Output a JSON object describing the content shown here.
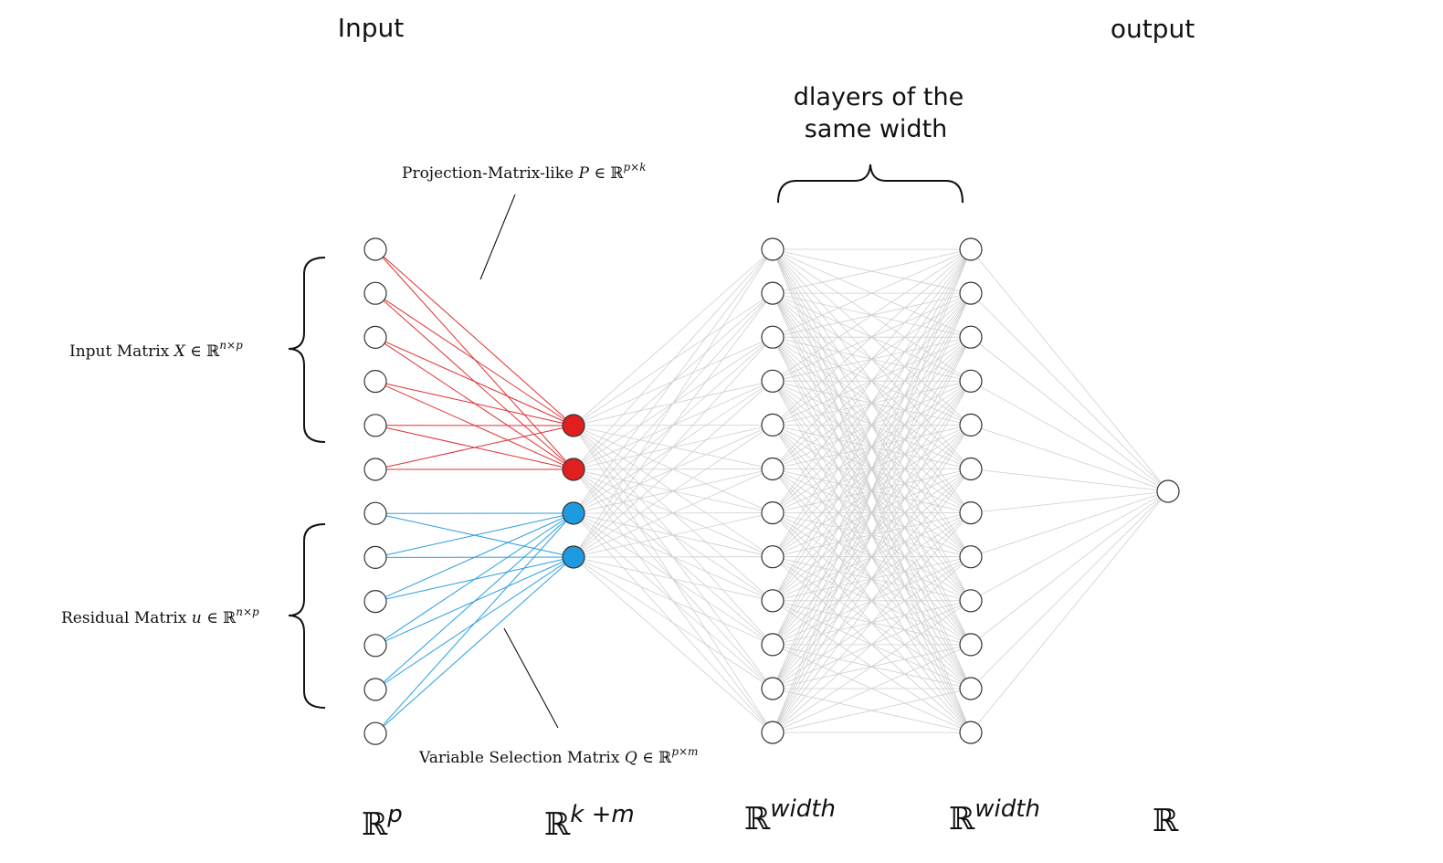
{
  "titles": {
    "input": "Input",
    "output": "output",
    "hidden_layers": [
      "dlayers of the",
      "same width"
    ]
  },
  "annotations": {
    "projection": {
      "text": "Projection-Matrix-like ",
      "var": "P",
      "sym": " ∈ ℝ",
      "sup": "p×k"
    },
    "input_matrix": {
      "text": "Input Matrix ",
      "var": "X",
      "sym": " ∈ ℝ",
      "sup": "n×p"
    },
    "residual_matrix": {
      "text": "Residual Matrix ",
      "var": "u",
      "sym": " ∈ ℝ",
      "sup": "n×p"
    },
    "variable_selection": {
      "text": "Variable Selection Matrix ",
      "var": "Q",
      "sym": " ∈ ℝ",
      "sup": "p×m"
    }
  },
  "dimensions": [
    {
      "base": "ℝ",
      "sup": "p"
    },
    {
      "base": "ℝ",
      "sup": "k +m"
    },
    {
      "base": "ℝ",
      "sup": "width"
    },
    {
      "base": "ℝ",
      "sup": "width"
    },
    {
      "base": "ℝ",
      "sup": ""
    }
  ],
  "network": {
    "input_nodes": 12,
    "input_matrix_nodes": 6,
    "residual_nodes": 6,
    "projection_nodes": 2,
    "selection_nodes": 2,
    "hidden_width": 12,
    "hidden_layers_shown": 2,
    "output_nodes": 1
  },
  "colors": {
    "projection": "#e02020",
    "selection": "#1e9be0",
    "edge": "#cfcfcf",
    "node_stroke": "#333333"
  }
}
